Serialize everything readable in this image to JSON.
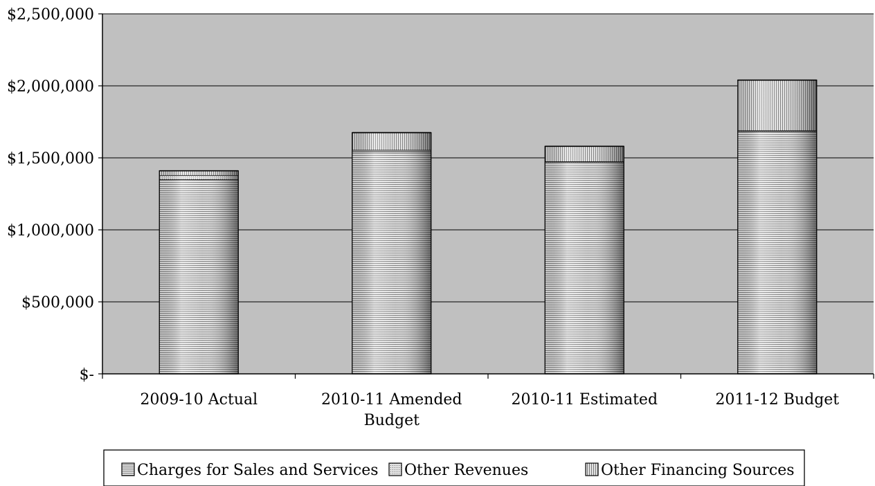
{
  "chart_data": {
    "type": "bar",
    "stacked": true,
    "title": "",
    "xlabel": "",
    "ylabel": "",
    "categories": [
      [
        "2009-10 Actual"
      ],
      [
        "2010-11 Amended",
        "Budget"
      ],
      [
        "2010-11 Estimated"
      ],
      [
        "2011-12 Budget"
      ]
    ],
    "series": [
      {
        "name": "Charges for Sales and Services",
        "values": [
          1350000,
          1545000,
          1470000,
          1685000
        ]
      },
      {
        "name": "Other Revenues",
        "values": [
          30000,
          10000,
          5000,
          5000
        ]
      },
      {
        "name": "Other Financing Sources",
        "values": [
          30000,
          120000,
          105000,
          350000
        ]
      }
    ],
    "ylim": [
      0,
      2500000
    ],
    "yticks": [
      0,
      500000,
      1000000,
      1500000,
      2000000,
      2500000
    ],
    "ytick_labels": [
      "$-",
      "$500,000",
      "$1,000,000",
      "$1,500,000",
      "$2,000,000",
      "$2,500,000"
    ],
    "grid": true,
    "legend": "bottom",
    "colors": {
      "plot_background": "#c0c0c0",
      "gridline": "#000000",
      "bar_fill": "#d8d8d8",
      "bar_stroke": "#000000"
    }
  }
}
